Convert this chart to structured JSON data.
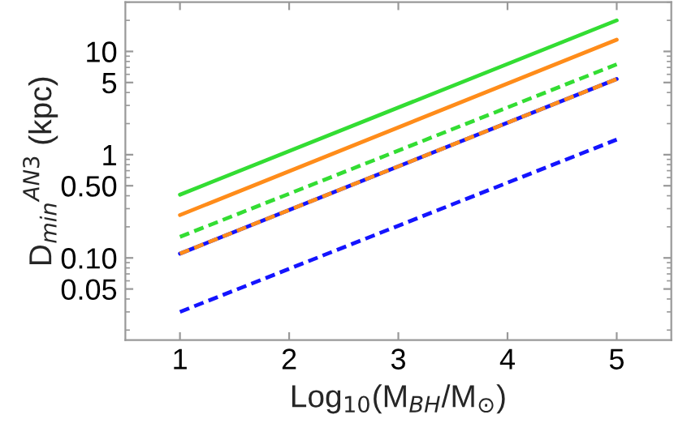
{
  "chart_data": {
    "type": "line",
    "xlabel": "Log$_{10}$(M$_{BH}$/M$_{⊙}$)",
    "ylabel": "D$_{min}$$^{AN3}$ (kpc)",
    "log": "y",
    "x": [
      1,
      5
    ],
    "series": [
      {
        "color": "#1414ff",
        "values": [
          0.03,
          1.4
        ],
        "line_style": "dashed"
      },
      {
        "color": "#1414ff",
        "values": [
          0.11,
          5.4
        ],
        "line_style": "solid"
      },
      {
        "color": "#ff8c1a",
        "values": [
          0.11,
          5.4
        ],
        "line_style": "dashed"
      },
      {
        "color": "#33dd33",
        "values": [
          0.16,
          7.5
        ],
        "line_style": "dashed"
      },
      {
        "color": "#ff8c1a",
        "values": [
          0.26,
          13
        ],
        "line_style": "solid"
      },
      {
        "color": "#33dd33",
        "values": [
          0.41,
          20
        ],
        "line_style": "solid"
      }
    ],
    "xlim": [
      0.5,
      5.5
    ],
    "xticks": [
      1,
      2,
      3,
      4,
      5
    ],
    "ylim": [
      0.016,
      30
    ],
    "yticks": [
      0.05,
      {
        "value": 0.1,
        "label": "0.10"
      },
      {
        "value": 0.5,
        "label": "0.50"
      },
      1,
      5,
      10
    ],
    "grid": false,
    "legend": false
  }
}
